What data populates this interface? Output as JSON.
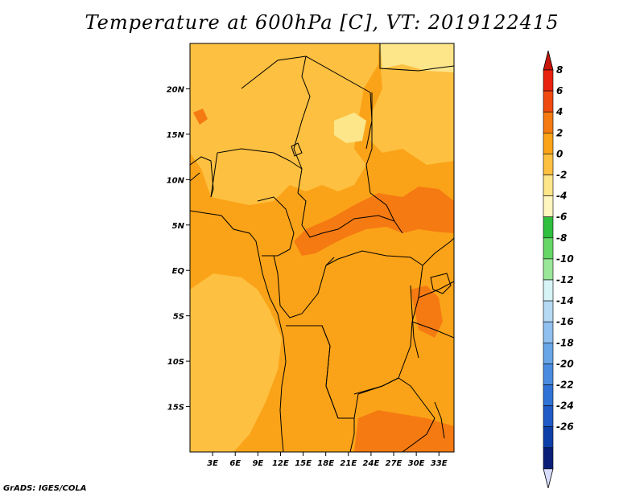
{
  "title": "Temperature at 600hPa [C], VT: 2019122415",
  "credit": "GrADS: IGES/COLA",
  "map": {
    "lon_range": [
      0,
      35
    ],
    "lat_range": [
      -20,
      25
    ],
    "lat_ticks": [
      "20N",
      "15N",
      "10N",
      "5N",
      "EQ",
      "5S",
      "10S",
      "15S"
    ],
    "lat_values": [
      20,
      15,
      10,
      5,
      0,
      -5,
      -10,
      -15
    ],
    "lon_ticks": [
      "3E",
      "6E",
      "9E",
      "12E",
      "15E",
      "18E",
      "21E",
      "24E",
      "27E",
      "30E",
      "33E"
    ],
    "lon_values": [
      3,
      6,
      9,
      12,
      15,
      18,
      21,
      24,
      27,
      30,
      33
    ]
  },
  "colorbar": {
    "labels": [
      "8",
      "6",
      "4",
      "2",
      "0",
      "-2",
      "-4",
      "-6",
      "-8",
      "-10",
      "-12",
      "-14",
      "-16",
      "-18",
      "-20",
      "-22",
      "-24",
      "-26"
    ],
    "colors": [
      "#e8220e",
      "#f04a10",
      "#f57a12",
      "#fba318",
      "#fdc040",
      "#fde58a",
      "#fff5bf",
      "#2fbf3f",
      "#66d766",
      "#9ae79a",
      "#d6f3f6",
      "#b5d9f3",
      "#8fc0ee",
      "#68a6e8",
      "#4a8de0",
      "#2f73d6",
      "#1f5ac7",
      "#0e3fa8",
      "#0a1e78"
    ],
    "over_color": "#c8160a",
    "under_color": "#d8dcff"
  }
}
